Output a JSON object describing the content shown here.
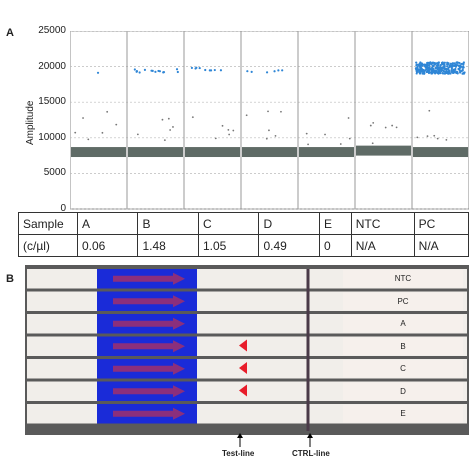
{
  "panelA": {
    "label": "A",
    "ylabel": "Amplitude",
    "yticks": [
      "0",
      "5000",
      "10000",
      "15000",
      "20000",
      "25000"
    ],
    "table": {
      "row_header_1": "Sample",
      "row_header_2": "(c/µl)",
      "samples": [
        "A",
        "B",
        "C",
        "D",
        "E",
        "NTC",
        "PC"
      ],
      "values": [
        "0.06",
        "1.48",
        "1.05",
        "0.49",
        "0",
        "N/A",
        "N/A"
      ]
    }
  },
  "panelB": {
    "label": "B",
    "strips": [
      "NTC",
      "PC",
      "A",
      "B",
      "C",
      "D",
      "E"
    ],
    "test_line_label": "Test-line",
    "ctrl_line_label": "CTRL-line",
    "arrow_color": "#e81c2a",
    "pad_color": "#1a2bd8",
    "purple_arrow_color": "#8b2f7c"
  },
  "chart_data": {
    "type": "scatter",
    "title": "",
    "xlabel": "",
    "ylabel": "Amplitude",
    "ylim": [
      0,
      25000
    ],
    "yticks": [
      0,
      5000,
      10000,
      15000,
      20000,
      25000
    ],
    "grid": true,
    "categories": [
      "A",
      "B",
      "C",
      "D",
      "E",
      "NTC",
      "PC"
    ],
    "series": [
      {
        "values": [
          8000,
          8000,
          8000,
          8000,
          8000,
          8200,
          8000
        ]
      },
      {
        "values": [
          19100,
          19400,
          19600,
          19400,
          null,
          null,
          19800
        ]
      }
    ],
    "positive_counts": [
      1,
      14,
      9,
      6,
      0,
      0,
      300
    ]
  }
}
